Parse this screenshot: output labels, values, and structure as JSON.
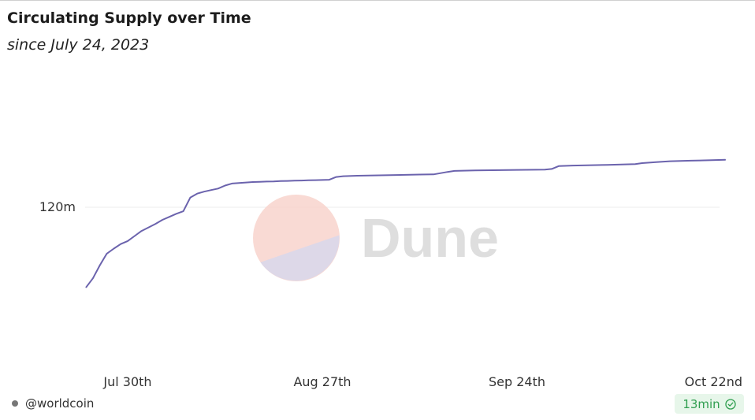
{
  "title": "Circulating Supply over Time",
  "subtitle": "since July 24, 2023",
  "watermark": "Dune",
  "footer": {
    "user": "@worldcoin",
    "refresh_badge": "13min",
    "badge_icon": "check-circle-icon"
  },
  "colors": {
    "line": "#6b63ad",
    "badge_text": "#2f9e4f",
    "badge_bg": "#e7f6ea",
    "watermark_top": "#f8d3cc",
    "watermark_bottom": "#d9d7ea",
    "watermark_text": "#dedede"
  },
  "chart_data": {
    "type": "line",
    "x_ticks": [
      "Jul 30th",
      "Aug 27th",
      "Sep 24th",
      "Oct 22nd"
    ],
    "x_tick_dates": [
      "2023-07-30",
      "2023-08-27",
      "2023-09-24",
      "2023-10-22"
    ],
    "y_ticks": [
      120000000
    ],
    "y_tick_labels": [
      "120m"
    ],
    "grid": true,
    "legend": "none",
    "series": [
      {
        "points": [
          [
            "2023-07-24",
            104100000
          ],
          [
            "2023-07-25",
            105900000
          ],
          [
            "2023-07-26",
            108500000
          ],
          [
            "2023-07-27",
            110800000
          ],
          [
            "2023-07-28",
            111800000
          ],
          [
            "2023-07-29",
            112700000
          ],
          [
            "2023-07-30",
            113300000
          ],
          [
            "2023-07-31",
            114300000
          ],
          [
            "2023-08-01",
            115300000
          ],
          [
            "2023-08-02",
            116000000
          ],
          [
            "2023-08-03",
            116700000
          ],
          [
            "2023-08-04",
            117500000
          ],
          [
            "2023-08-05",
            118100000
          ],
          [
            "2023-08-06",
            118700000
          ],
          [
            "2023-08-07",
            119200000
          ],
          [
            "2023-08-08",
            121900000
          ],
          [
            "2023-08-09",
            122700000
          ],
          [
            "2023-08-10",
            123100000
          ],
          [
            "2023-08-11",
            123400000
          ],
          [
            "2023-08-12",
            123700000
          ],
          [
            "2023-08-13",
            124300000
          ],
          [
            "2023-08-14",
            124700000
          ],
          [
            "2023-08-15",
            124800000
          ],
          [
            "2023-08-16",
            124900000
          ],
          [
            "2023-08-17",
            125000000
          ],
          [
            "2023-08-18",
            125050000
          ],
          [
            "2023-08-19",
            125100000
          ],
          [
            "2023-08-20",
            125130000
          ],
          [
            "2023-08-21",
            125180000
          ],
          [
            "2023-08-22",
            125220000
          ],
          [
            "2023-08-23",
            125260000
          ],
          [
            "2023-08-24",
            125300000
          ],
          [
            "2023-08-25",
            125340000
          ],
          [
            "2023-08-26",
            125370000
          ],
          [
            "2023-08-27",
            125400000
          ],
          [
            "2023-08-28",
            125450000
          ],
          [
            "2023-08-29",
            126000000
          ],
          [
            "2023-08-30",
            126150000
          ],
          [
            "2023-09-01",
            126250000
          ],
          [
            "2023-09-05",
            126350000
          ],
          [
            "2023-09-10",
            126480000
          ],
          [
            "2023-09-12",
            126520000
          ],
          [
            "2023-09-14",
            127000000
          ],
          [
            "2023-09-15",
            127200000
          ],
          [
            "2023-09-18",
            127300000
          ],
          [
            "2023-09-24",
            127400000
          ],
          [
            "2023-09-28",
            127450000
          ],
          [
            "2023-09-29",
            127600000
          ],
          [
            "2023-09-30",
            128150000
          ],
          [
            "2023-10-02",
            128260000
          ],
          [
            "2023-10-07",
            128400000
          ],
          [
            "2023-10-11",
            128550000
          ],
          [
            "2023-10-12",
            128750000
          ],
          [
            "2023-10-14",
            128950000
          ],
          [
            "2023-10-16",
            129130000
          ],
          [
            "2023-10-19",
            129230000
          ],
          [
            "2023-10-22",
            129330000
          ],
          [
            "2023-10-24",
            129400000
          ]
        ]
      }
    ]
  }
}
